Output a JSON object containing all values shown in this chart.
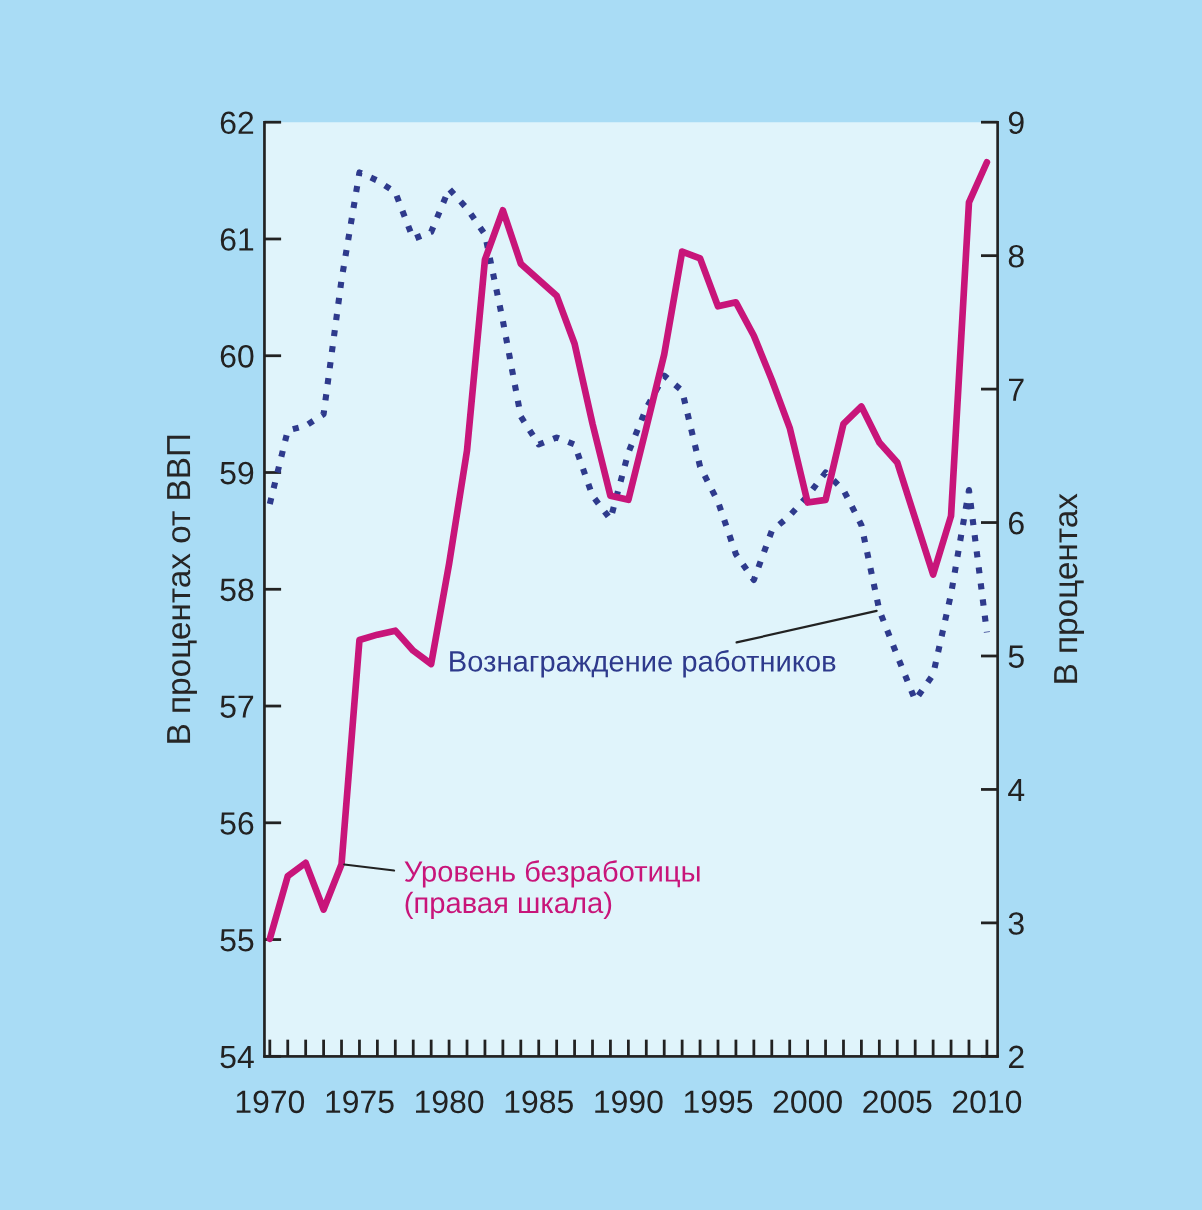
{
  "chart_data": {
    "type": "line",
    "ylabel": "В процентах от ВВП",
    "y2label": "В процентах",
    "x": [
      1970,
      1971,
      1972,
      1973,
      1974,
      1975,
      1976,
      1977,
      1978,
      1979,
      1980,
      1981,
      1982,
      1983,
      1984,
      1985,
      1986,
      1987,
      1988,
      1989,
      1990,
      1991,
      1992,
      1993,
      1994,
      1995,
      1996,
      1997,
      1998,
      1999,
      2000,
      2001,
      2002,
      2003,
      2004,
      2005,
      2006,
      2007,
      2008,
      2009,
      2010
    ],
    "series": [
      {
        "name": "Вознаграждение работников",
        "color": "#2e3a8c",
        "line_style": "dotted",
        "values": [
          58.73,
          59.36,
          59.4,
          59.5,
          60.65,
          61.57,
          61.5,
          61.4,
          61.0,
          61.06,
          61.43,
          61.26,
          61.04,
          60.3,
          59.48,
          59.24,
          59.3,
          59.24,
          58.8,
          58.6,
          59.17,
          59.55,
          59.83,
          59.7,
          59.05,
          58.75,
          58.3,
          58.08,
          58.5,
          58.63,
          58.8,
          59.0,
          58.85,
          58.55,
          57.82,
          57.43,
          57.05,
          57.27,
          57.96,
          58.85,
          57.63
        ]
      },
      {
        "name": "Уровень безработицы\n(правая шкала)",
        "color": "#c8157a",
        "line_style": "solid",
        "axis": "y2",
        "values": [
          2.88,
          3.35,
          3.45,
          3.1,
          3.44,
          5.12,
          5.16,
          5.19,
          5.04,
          4.94,
          5.69,
          6.54,
          7.97,
          8.34,
          7.94,
          7.82,
          7.7,
          7.34,
          6.74,
          6.2,
          6.17,
          6.71,
          7.26,
          8.03,
          7.98,
          7.62,
          7.65,
          7.4,
          7.07,
          6.71,
          6.15,
          6.17,
          6.74,
          6.87,
          6.6,
          6.45,
          6.03,
          5.61,
          6.05,
          8.4,
          8.7
        ]
      }
    ],
    "xlim": [
      1969.7,
      2010.6
    ],
    "xticks": [
      1970,
      {
        "value": 1971,
        "label": null
      },
      {
        "value": 1972,
        "label": null
      },
      {
        "value": 1973,
        "label": null
      },
      {
        "value": 1974,
        "label": null
      },
      1975,
      {
        "value": 1976,
        "label": null
      },
      {
        "value": 1977,
        "label": null
      },
      {
        "value": 1978,
        "label": null
      },
      {
        "value": 1979,
        "label": null
      },
      1980,
      {
        "value": 1981,
        "label": null
      },
      {
        "value": 1982,
        "label": null
      },
      {
        "value": 1983,
        "label": null
      },
      {
        "value": 1984,
        "label": null
      },
      1985,
      {
        "value": 1986,
        "label": null
      },
      {
        "value": 1987,
        "label": null
      },
      {
        "value": 1988,
        "label": null
      },
      {
        "value": 1989,
        "label": null
      },
      1990,
      {
        "value": 1991,
        "label": null
      },
      {
        "value": 1992,
        "label": null
      },
      {
        "value": 1993,
        "label": null
      },
      {
        "value": 1994,
        "label": null
      },
      1995,
      {
        "value": 1996,
        "label": null
      },
      {
        "value": 1997,
        "label": null
      },
      {
        "value": 1998,
        "label": null
      },
      {
        "value": 1999,
        "label": null
      },
      2000,
      {
        "value": 2001,
        "label": null
      },
      {
        "value": 2002,
        "label": null
      },
      {
        "value": 2003,
        "label": null
      },
      {
        "value": 2004,
        "label": null
      },
      2005,
      {
        "value": 2006,
        "label": null
      },
      {
        "value": 2007,
        "label": null
      },
      {
        "value": 2008,
        "label": null
      },
      {
        "value": 2009,
        "label": null
      },
      2010
    ],
    "ylim": [
      54,
      62
    ],
    "yticks": [
      54,
      55,
      56,
      57,
      58,
      59,
      60,
      61,
      62
    ],
    "y2lim": [
      2,
      9
    ],
    "y2ticks": [
      2,
      3,
      4,
      5,
      6,
      7,
      8,
      9
    ],
    "grid": false,
    "legend": false
  }
}
